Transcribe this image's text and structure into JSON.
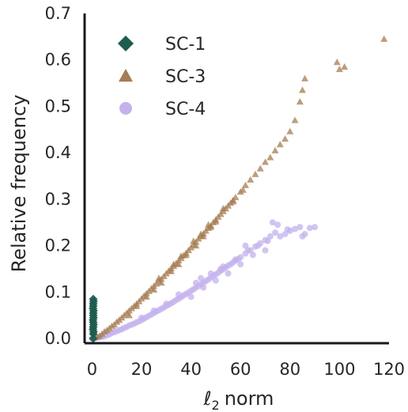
{
  "chart_data": {
    "type": "scatter",
    "xlabel": "norm",
    "xlabel_math": "ℓ",
    "xlabel_subscript": "2",
    "ylabel": "Relative frequency",
    "xlim": [
      -3,
      120
    ],
    "ylim": [
      -0.01,
      0.7
    ],
    "xticks": [
      "0",
      "20",
      "40",
      "60",
      "80",
      "100",
      "120"
    ],
    "yticks": [
      "0.0",
      "0.1",
      "0.2",
      "0.3",
      "0.4",
      "0.5",
      "0.6",
      "0.7"
    ],
    "xtick_values": [
      0,
      20,
      40,
      60,
      80,
      100,
      120
    ],
    "ytick_values": [
      0.0,
      0.1,
      0.2,
      0.3,
      0.4,
      0.5,
      0.6,
      0.7
    ],
    "legend_position": "top-left",
    "grid": false,
    "series": [
      {
        "name": "SC-1",
        "marker": "diamond",
        "color": "#1f5c4f",
        "points": [
          [
            0.5,
            0.01
          ],
          [
            0.6,
            0.015
          ],
          [
            0.4,
            0.02
          ],
          [
            0.5,
            0.025
          ],
          [
            0.6,
            0.03
          ],
          [
            0.5,
            0.035
          ],
          [
            0.4,
            0.04
          ],
          [
            0.6,
            0.045
          ],
          [
            0.5,
            0.05
          ],
          [
            0.5,
            0.055
          ],
          [
            0.6,
            0.06
          ],
          [
            0.4,
            0.065
          ],
          [
            0.5,
            0.07
          ],
          [
            0.5,
            0.075
          ],
          [
            0.6,
            0.08
          ],
          [
            0.5,
            0.085
          ],
          [
            0.5,
            0.0
          ]
        ]
      },
      {
        "name": "SC-3",
        "marker": "triangle",
        "color": "#a67c52",
        "points": [
          [
            1,
            0.002
          ],
          [
            2,
            0.004
          ],
          [
            3,
            0.006
          ],
          [
            4,
            0.01
          ],
          [
            5,
            0.015
          ],
          [
            6,
            0.018
          ],
          [
            7,
            0.022
          ],
          [
            8,
            0.027
          ],
          [
            9,
            0.03
          ],
          [
            10,
            0.036
          ],
          [
            11,
            0.04
          ],
          [
            12,
            0.045
          ],
          [
            13,
            0.05
          ],
          [
            14,
            0.055
          ],
          [
            15,
            0.06
          ],
          [
            16,
            0.065
          ],
          [
            17,
            0.07
          ],
          [
            18,
            0.075
          ],
          [
            19,
            0.08
          ],
          [
            20,
            0.086
          ],
          [
            21,
            0.092
          ],
          [
            22,
            0.097
          ],
          [
            23,
            0.102
          ],
          [
            24,
            0.108
          ],
          [
            25,
            0.113
          ],
          [
            26,
            0.118
          ],
          [
            27,
            0.124
          ],
          [
            28,
            0.128
          ],
          [
            29,
            0.134
          ],
          [
            30,
            0.14
          ],
          [
            31,
            0.146
          ],
          [
            32,
            0.151
          ],
          [
            33,
            0.156
          ],
          [
            34,
            0.162
          ],
          [
            35,
            0.168
          ],
          [
            36,
            0.173
          ],
          [
            37,
            0.179
          ],
          [
            38,
            0.184
          ],
          [
            39,
            0.19
          ],
          [
            40,
            0.196
          ],
          [
            41,
            0.202
          ],
          [
            42,
            0.208
          ],
          [
            43,
            0.215
          ],
          [
            44,
            0.22
          ],
          [
            45,
            0.226
          ],
          [
            46,
            0.232
          ],
          [
            47,
            0.238
          ],
          [
            48,
            0.243
          ],
          [
            49,
            0.25
          ],
          [
            50,
            0.256
          ],
          [
            51,
            0.262
          ],
          [
            52,
            0.268
          ],
          [
            53,
            0.274
          ],
          [
            54,
            0.28
          ],
          [
            55,
            0.286
          ],
          [
            56,
            0.292
          ],
          [
            57,
            0.298
          ],
          [
            58,
            0.304
          ],
          [
            60,
            0.316
          ],
          [
            62,
            0.33
          ],
          [
            64,
            0.342
          ],
          [
            66,
            0.354
          ],
          [
            68,
            0.366
          ],
          [
            70,
            0.38
          ],
          [
            72,
            0.39
          ],
          [
            74,
            0.405
          ],
          [
            76,
            0.418
          ],
          [
            78,
            0.43
          ],
          [
            80,
            0.446
          ],
          [
            82,
            0.47
          ],
          [
            84,
            0.51
          ],
          [
            85,
            0.535
          ],
          [
            86,
            0.56
          ],
          [
            99,
            0.595
          ],
          [
            100,
            0.58
          ],
          [
            102,
            0.585
          ],
          [
            118,
            0.645
          ],
          [
            15,
            0.05
          ],
          [
            18,
            0.07
          ],
          [
            22,
            0.09
          ],
          [
            25,
            0.105
          ],
          [
            28,
            0.12
          ],
          [
            32,
            0.145
          ],
          [
            35,
            0.16
          ],
          [
            38,
            0.18
          ],
          [
            42,
            0.2
          ],
          [
            45,
            0.22
          ],
          [
            48,
            0.24
          ],
          [
            50,
            0.252
          ],
          [
            27,
            0.13
          ],
          [
            33,
            0.16
          ],
          [
            41,
            0.21
          ],
          [
            47,
            0.245
          ],
          [
            53,
            0.28
          ],
          [
            57,
            0.295
          ],
          [
            61,
            0.32
          ],
          [
            36,
            0.178
          ],
          [
            44,
            0.225
          ]
        ]
      },
      {
        "name": "SC-4",
        "marker": "circle",
        "color": "#c3b2ec",
        "points": [
          [
            0,
            0.0
          ],
          [
            1,
            0.001
          ],
          [
            2,
            0.002
          ],
          [
            3,
            0.003
          ],
          [
            4,
            0.004
          ],
          [
            5,
            0.005
          ],
          [
            6,
            0.007
          ],
          [
            7,
            0.009
          ],
          [
            8,
            0.012
          ],
          [
            9,
            0.014
          ],
          [
            10,
            0.016
          ],
          [
            11,
            0.018
          ],
          [
            12,
            0.02
          ],
          [
            13,
            0.023
          ],
          [
            14,
            0.025
          ],
          [
            15,
            0.028
          ],
          [
            16,
            0.03
          ],
          [
            17,
            0.032
          ],
          [
            18,
            0.035
          ],
          [
            19,
            0.037
          ],
          [
            20,
            0.04
          ],
          [
            21,
            0.043
          ],
          [
            22,
            0.046
          ],
          [
            23,
            0.049
          ],
          [
            24,
            0.052
          ],
          [
            25,
            0.055
          ],
          [
            26,
            0.058
          ],
          [
            27,
            0.061
          ],
          [
            28,
            0.064
          ],
          [
            29,
            0.067
          ],
          [
            30,
            0.07
          ],
          [
            31,
            0.073
          ],
          [
            32,
            0.076
          ],
          [
            33,
            0.079
          ],
          [
            34,
            0.083
          ],
          [
            35,
            0.086
          ],
          [
            36,
            0.089
          ],
          [
            37,
            0.093
          ],
          [
            38,
            0.096
          ],
          [
            39,
            0.099
          ],
          [
            40,
            0.103
          ],
          [
            41,
            0.106
          ],
          [
            42,
            0.11
          ],
          [
            43,
            0.113
          ],
          [
            44,
            0.117
          ],
          [
            45,
            0.12
          ],
          [
            46,
            0.124
          ],
          [
            47,
            0.127
          ],
          [
            48,
            0.131
          ],
          [
            49,
            0.135
          ],
          [
            50,
            0.138
          ],
          [
            51,
            0.142
          ],
          [
            52,
            0.146
          ],
          [
            53,
            0.149
          ],
          [
            54,
            0.153
          ],
          [
            55,
            0.157
          ],
          [
            56,
            0.16
          ],
          [
            57,
            0.164
          ],
          [
            58,
            0.168
          ],
          [
            59,
            0.171
          ],
          [
            60,
            0.175
          ],
          [
            62,
            0.183
          ],
          [
            64,
            0.19
          ],
          [
            66,
            0.198
          ],
          [
            68,
            0.205
          ],
          [
            70,
            0.212
          ],
          [
            72,
            0.22
          ],
          [
            74,
            0.228
          ],
          [
            76,
            0.22
          ],
          [
            78,
            0.225
          ],
          [
            80,
            0.232
          ],
          [
            82,
            0.236
          ],
          [
            84,
            0.24
          ],
          [
            86,
            0.225
          ],
          [
            88,
            0.238
          ],
          [
            90,
            0.24
          ],
          [
            73,
            0.25
          ],
          [
            75,
            0.245
          ],
          [
            79,
            0.235
          ],
          [
            85,
            0.22
          ],
          [
            40,
            0.09
          ],
          [
            45,
            0.11
          ],
          [
            50,
            0.125
          ],
          [
            55,
            0.14
          ],
          [
            60,
            0.16
          ],
          [
            65,
            0.18
          ],
          [
            35,
            0.095
          ],
          [
            42,
            0.12
          ],
          [
            48,
            0.14
          ],
          [
            53,
            0.155
          ],
          [
            58,
            0.17
          ],
          [
            63,
            0.19
          ],
          [
            67,
            0.2
          ],
          [
            71,
            0.21
          ],
          [
            30,
            0.075
          ],
          [
            25,
            0.06
          ],
          [
            20,
            0.045
          ],
          [
            44,
            0.13
          ],
          [
            52,
            0.15
          ],
          [
            62,
            0.2
          ],
          [
            70,
            0.19
          ]
        ]
      }
    ]
  }
}
